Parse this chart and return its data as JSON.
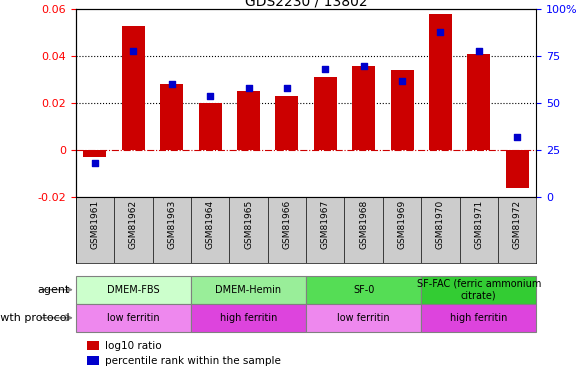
{
  "title": "GDS2230 / 13802",
  "samples": [
    "GSM81961",
    "GSM81962",
    "GSM81963",
    "GSM81964",
    "GSM81965",
    "GSM81966",
    "GSM81967",
    "GSM81968",
    "GSM81969",
    "GSM81970",
    "GSM81971",
    "GSM81972"
  ],
  "log10_ratio": [
    -0.003,
    0.053,
    0.028,
    0.02,
    0.025,
    0.023,
    0.031,
    0.036,
    0.034,
    0.058,
    0.041,
    -0.016
  ],
  "percentile_rank": [
    18,
    78,
    60,
    54,
    58,
    58,
    68,
    70,
    62,
    88,
    78,
    32
  ],
  "bar_color": "#cc0000",
  "dot_color": "#0000cc",
  "ylim_left": [
    -0.02,
    0.06
  ],
  "ylim_right": [
    0,
    100
  ],
  "yticks_left": [
    -0.02,
    0.0,
    0.02,
    0.04,
    0.06
  ],
  "ytick_labels_left": [
    "-0.02",
    "0",
    "0.02",
    "0.04",
    "0.06"
  ],
  "yticks_right": [
    0,
    25,
    50,
    75,
    100
  ],
  "ytick_labels_right": [
    "0",
    "25",
    "50",
    "75",
    "100%"
  ],
  "hline_value": 0.0,
  "dotted_lines": [
    0.02,
    0.04
  ],
  "agent_groups": [
    {
      "label": "DMEM-FBS",
      "start": 0,
      "end": 3,
      "color": "#ccffcc"
    },
    {
      "label": "DMEM-Hemin",
      "start": 3,
      "end": 6,
      "color": "#99ee99"
    },
    {
      "label": "SF-0",
      "start": 6,
      "end": 9,
      "color": "#55dd55"
    },
    {
      "label": "SF-FAC (ferric ammonium\ncitrate)",
      "start": 9,
      "end": 12,
      "color": "#33cc33"
    }
  ],
  "protocol_groups": [
    {
      "label": "low ferritin",
      "start": 0,
      "end": 3,
      "color": "#ee88ee"
    },
    {
      "label": "high ferritin",
      "start": 3,
      "end": 6,
      "color": "#dd44dd"
    },
    {
      "label": "low ferritin",
      "start": 6,
      "end": 9,
      "color": "#ee88ee"
    },
    {
      "label": "high ferritin",
      "start": 9,
      "end": 12,
      "color": "#dd44dd"
    }
  ],
  "agent_label": "agent",
  "protocol_label": "growth protocol",
  "tick_bg_color": "#cccccc",
  "legend_items": [
    {
      "color": "#cc0000",
      "label": "log10 ratio"
    },
    {
      "color": "#0000cc",
      "label": "percentile rank within the sample"
    }
  ],
  "bar_width": 0.6,
  "figure_width": 5.83,
  "figure_height": 3.75
}
